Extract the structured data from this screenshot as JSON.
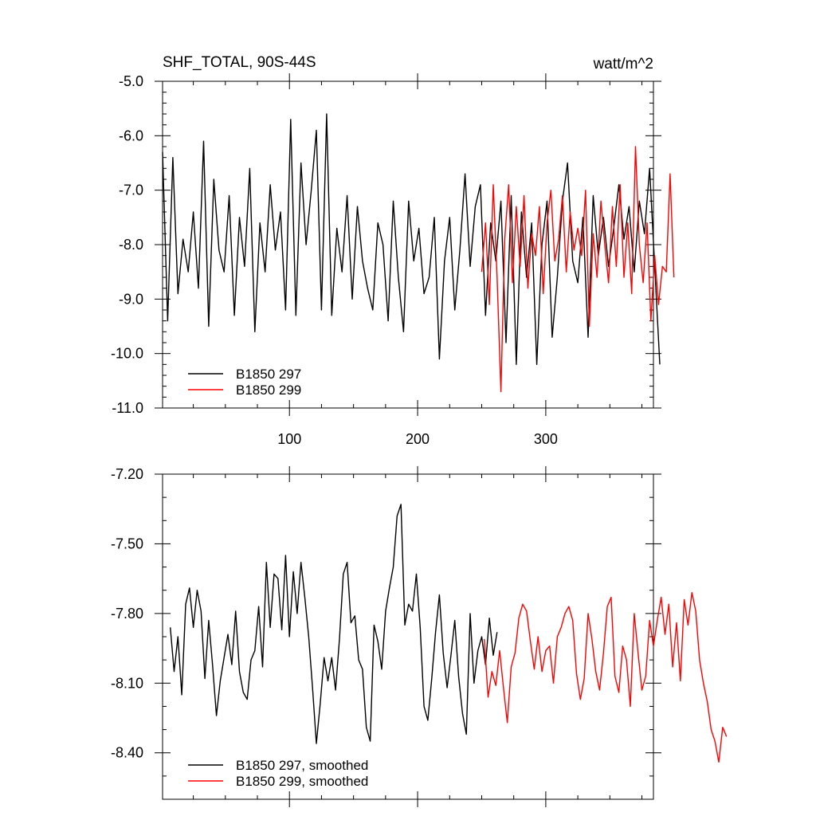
{
  "chart_data": [
    {
      "type": "line",
      "title": "SHF_TOTAL, 90S-44S",
      "units": "watt/m^2",
      "xlim": [
        1,
        384
      ],
      "ylim": [
        -11.0,
        -5.0
      ],
      "x_ticks": [
        100,
        200,
        300
      ],
      "x_tick_labels": [
        "100",
        "200",
        "300"
      ],
      "y_ticks": [
        -5.0,
        -6.0,
        -7.0,
        -8.0,
        -9.0,
        -10.0,
        -11.0
      ],
      "y_tick_labels": [
        "-5.0",
        "-6.0",
        "-7.0",
        "-8.0",
        "-9.0",
        "-10.0",
        "-11.0"
      ],
      "grid": false,
      "legend": "bottom-left",
      "series": [
        {
          "name": "B1850 297",
          "color": "#000000",
          "x_start": 1,
          "x_step": 4,
          "values": [
            -6.3,
            -9.4,
            -6.4,
            -8.9,
            -7.9,
            -8.5,
            -7.4,
            -8.8,
            -6.1,
            -9.5,
            -6.8,
            -8.1,
            -8.5,
            -7.1,
            -9.3,
            -7.5,
            -8.4,
            -6.6,
            -9.6,
            -7.6,
            -8.5,
            -6.9,
            -8.1,
            -7.4,
            -9.2,
            -5.7,
            -9.3,
            -6.5,
            -8.0,
            -7.0,
            -5.9,
            -9.2,
            -5.6,
            -9.3,
            -7.7,
            -8.5,
            -7.1,
            -9.0,
            -7.3,
            -8.3,
            -8.8,
            -9.2,
            -7.6,
            -8.0,
            -9.4,
            -7.2,
            -8.6,
            -9.6,
            -7.2,
            -8.3,
            -7.7,
            -8.9,
            -8.6,
            -7.5,
            -10.1,
            -8.3,
            -7.5,
            -9.2,
            -8.1,
            -6.7,
            -8.4,
            -7.3,
            -6.9,
            -9.3,
            -7.6,
            -8.3,
            -7.2,
            -9.8,
            -7.1,
            -10.2,
            -7.4,
            -8.6,
            -7.6,
            -10.2,
            -8.0,
            -7.2,
            -9.7,
            -8.6,
            -7.2,
            -6.5,
            -8.3,
            -8.7,
            -7.5,
            -9.7,
            -7.1,
            -8.2,
            -7.5,
            -8.4,
            -7.7,
            -6.9,
            -7.9,
            -7.3,
            -8.5,
            -7.2,
            -7.8,
            -6.6,
            -8.4,
            -10.2
          ]
        },
        {
          "name": "B1850 299",
          "color": "#ff0000",
          "x_start": 250,
          "x_step": 3,
          "values": [
            -8.5,
            -7.6,
            -9.1,
            -6.9,
            -8.6,
            -10.7,
            -7.9,
            -6.9,
            -8.7,
            -7.3,
            -8.4,
            -7.1,
            -8.8,
            -7.8,
            -8.2,
            -7.3,
            -8.9,
            -7.6,
            -7.0,
            -8.3,
            -7.9,
            -7.1,
            -8.5,
            -7.4,
            -8.1,
            -7.7,
            -8.2,
            -7.0,
            -9.5,
            -7.8,
            -8.6,
            -7.2,
            -8.0,
            -8.7,
            -7.3,
            -8.4,
            -6.9,
            -8.6,
            -7.6,
            -8.9,
            -6.2,
            -8.0,
            -8.7,
            -7.6,
            -9.4,
            -8.2,
            -9.1,
            -8.4,
            -8.5,
            -6.7,
            -8.6
          ]
        }
      ]
    },
    {
      "type": "line",
      "xlim": [
        1,
        384
      ],
      "ylim": [
        -8.6,
        -7.2
      ],
      "x_ticks": [
        100,
        200,
        300
      ],
      "y_ticks": [
        -7.2,
        -7.5,
        -7.8,
        -8.1,
        -8.4
      ],
      "y_tick_labels": [
        "-7.20",
        "-7.50",
        "-7.80",
        "-8.10",
        "-8.40"
      ],
      "grid": false,
      "legend": "bottom-left",
      "series": [
        {
          "name": "B1850 297, smoothed",
          "color": "#000000",
          "x_start": 7,
          "x_step": 3,
          "values": [
            -7.86,
            -8.05,
            -7.9,
            -8.15,
            -7.76,
            -7.69,
            -7.86,
            -7.7,
            -7.79,
            -8.08,
            -7.83,
            -8.02,
            -8.24,
            -8.09,
            -7.99,
            -7.89,
            -8.02,
            -7.79,
            -8.05,
            -8.14,
            -8.17,
            -8.0,
            -7.96,
            -7.77,
            -8.03,
            -7.58,
            -7.86,
            -7.63,
            -7.65,
            -7.87,
            -7.55,
            -7.9,
            -7.62,
            -7.8,
            -7.58,
            -7.73,
            -7.9,
            -8.12,
            -8.36,
            -8.19,
            -7.99,
            -8.09,
            -7.99,
            -8.13,
            -7.91,
            -7.63,
            -7.58,
            -7.84,
            -7.81,
            -8.0,
            -8.04,
            -8.29,
            -8.35,
            -7.85,
            -7.92,
            -8.04,
            -7.79,
            -7.69,
            -7.6,
            -7.38,
            -7.33,
            -7.85,
            -7.76,
            -7.79,
            -7.63,
            -7.86,
            -8.2,
            -8.26,
            -8.08,
            -7.88,
            -7.72,
            -7.97,
            -8.12,
            -7.98,
            -7.83,
            -8.07,
            -8.23,
            -8.32,
            -7.8,
            -8.1,
            -7.96,
            -7.9,
            -8.02,
            -7.82,
            -7.98,
            -7.88
          ]
        },
        {
          "name": "B1850 299, smoothed",
          "color": "#ff0000",
          "x_start": 252,
          "x_step": 3,
          "values": [
            -7.91,
            -8.16,
            -8.05,
            -8.11,
            -7.96,
            -8.12,
            -8.27,
            -8.03,
            -7.97,
            -7.82,
            -7.76,
            -7.79,
            -7.92,
            -8.04,
            -7.9,
            -8.05,
            -7.96,
            -7.94,
            -8.1,
            -7.9,
            -7.86,
            -7.8,
            -7.77,
            -7.83,
            -8.06,
            -8.17,
            -8.08,
            -7.8,
            -7.91,
            -8.05,
            -8.13,
            -7.97,
            -7.77,
            -7.73,
            -8.07,
            -8.14,
            -7.94,
            -8.0,
            -8.2,
            -7.8,
            -7.97,
            -8.13,
            -8.07,
            -7.83,
            -7.94,
            -7.83,
            -7.73,
            -7.89,
            -7.76,
            -8.03,
            -7.84,
            -8.09,
            -7.74,
            -7.85,
            -7.71,
            -7.79,
            -8.0,
            -8.1,
            -8.18,
            -8.3,
            -8.35,
            -8.44,
            -8.29,
            -8.33
          ]
        }
      ]
    }
  ]
}
